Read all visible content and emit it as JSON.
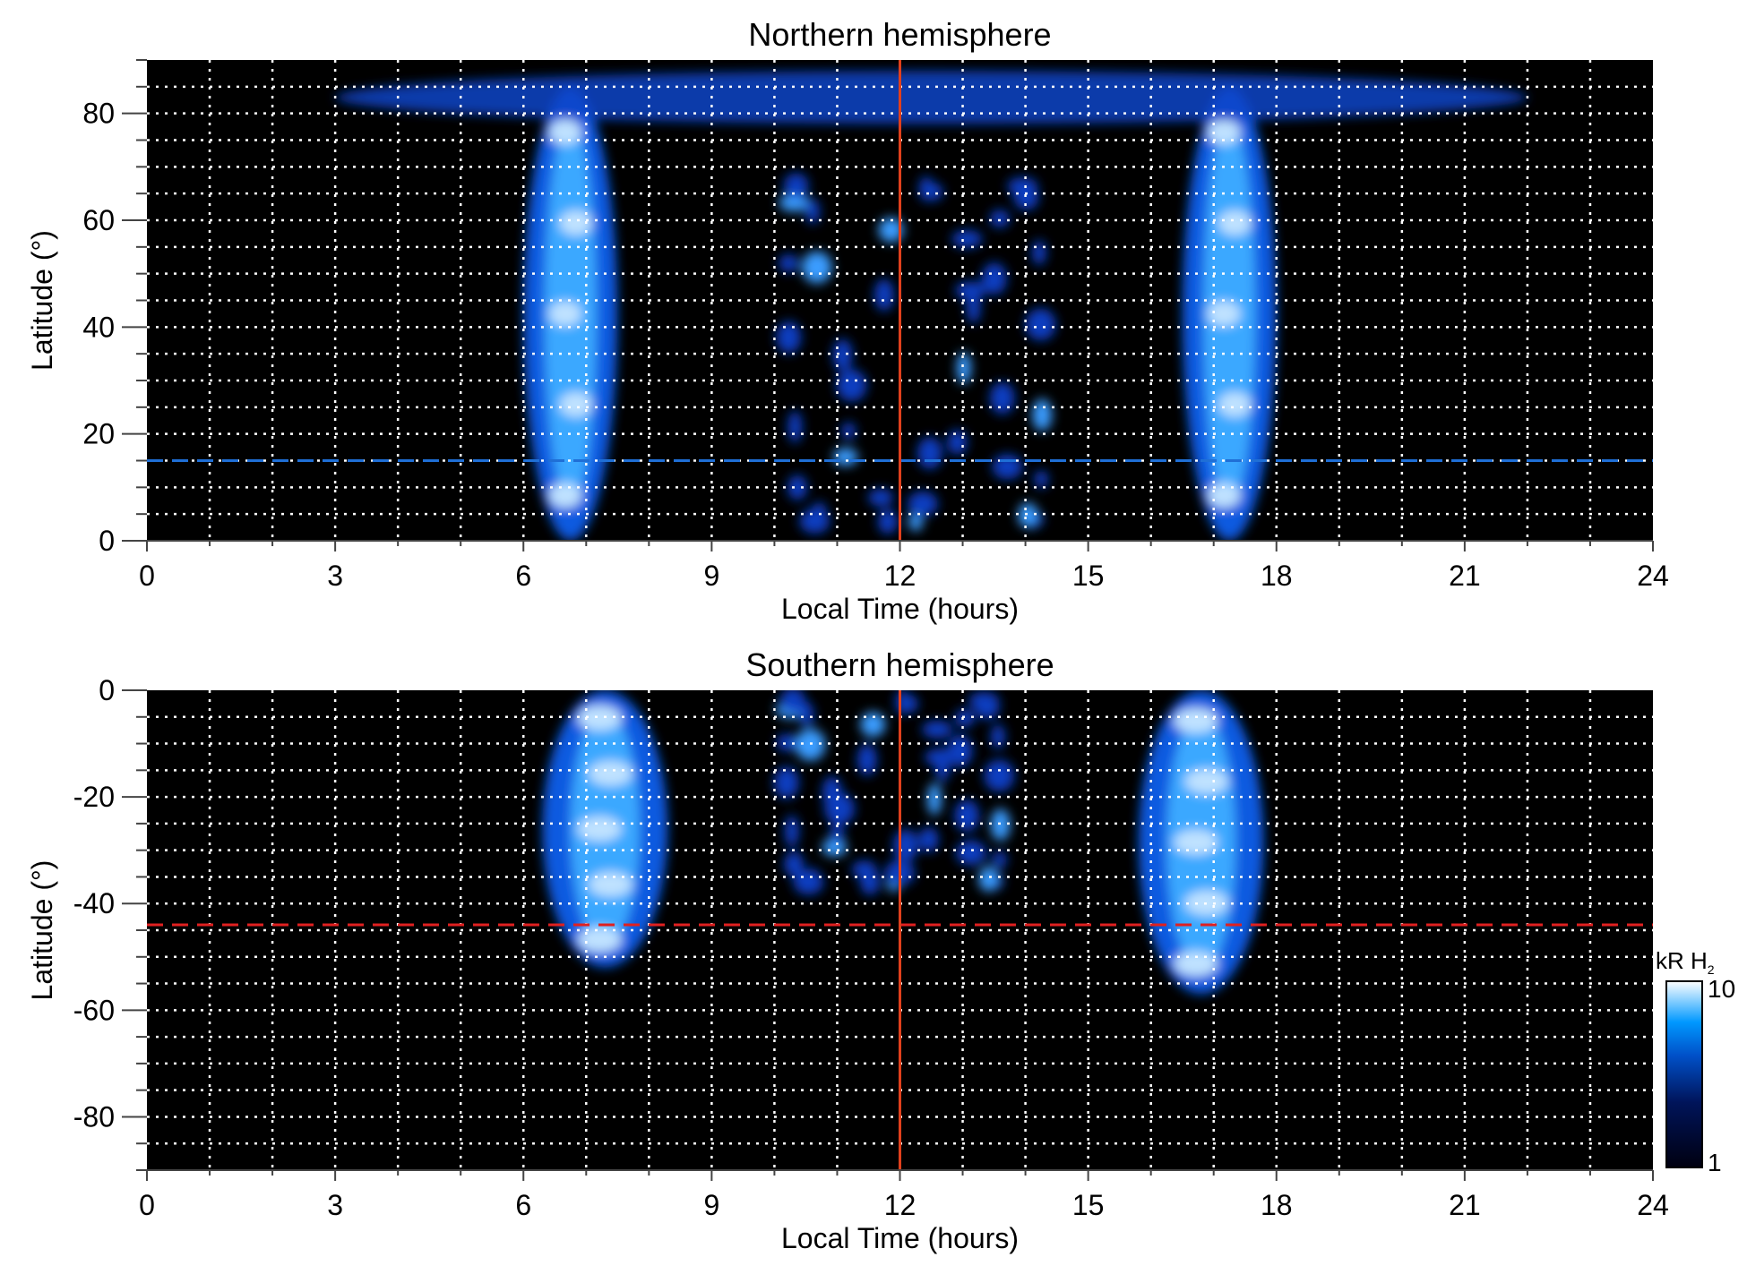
{
  "chart_data": [
    {
      "type": "heatmap",
      "title": "Northern hemisphere",
      "xlabel": "Local Time (hours)",
      "ylabel": "Latitude (°)",
      "xlim": [
        0,
        24
      ],
      "ylim": [
        0,
        90
      ],
      "xticks": [
        0,
        3,
        6,
        9,
        12,
        15,
        18,
        21,
        24
      ],
      "yticks": [
        0,
        20,
        40,
        60,
        80
      ],
      "grid": true,
      "vline": {
        "x": 12,
        "color": "#e0401c"
      },
      "hline": {
        "y": 15,
        "color": "#1f6fd6",
        "style": "dashed"
      },
      "features": [
        {
          "name": "dawn band",
          "x": [
            6,
            7.5
          ],
          "y": [
            0,
            85
          ]
        },
        {
          "name": "dusk band",
          "x": [
            16.5,
            18
          ],
          "y": [
            0,
            85
          ]
        },
        {
          "name": "noon patches",
          "x": [
            10,
            14.5
          ],
          "y": [
            0,
            70
          ]
        },
        {
          "name": "polar arc",
          "x": [
            3,
            22
          ],
          "y": [
            78,
            88
          ]
        }
      ]
    },
    {
      "type": "heatmap",
      "title": "Southern hemisphere",
      "xlabel": "Local Time (hours)",
      "ylabel": "Latitude (°)",
      "xlim": [
        0,
        24
      ],
      "ylim": [
        -90,
        0
      ],
      "xticks": [
        0,
        3,
        6,
        9,
        12,
        15,
        18,
        21,
        24
      ],
      "yticks": [
        0,
        -20,
        -40,
        -60,
        -80
      ],
      "grid": true,
      "vline": {
        "x": 12,
        "color": "#e0401c"
      },
      "hline": {
        "y": -44,
        "color": "#e02020",
        "style": "dashed"
      },
      "features": [
        {
          "name": "dawn band",
          "x": [
            6.3,
            8.3
          ],
          "y": [
            -52,
            0
          ]
        },
        {
          "name": "dusk band",
          "x": [
            15.8,
            17.8
          ],
          "y": [
            -57,
            0
          ]
        },
        {
          "name": "noon patches",
          "x": [
            10,
            13.8
          ],
          "y": [
            -38,
            0
          ]
        }
      ]
    }
  ],
  "colorbar": {
    "label": "kR H",
    "label_sub": "2",
    "min_label": "1",
    "max_label": "10",
    "scale": "log",
    "range": [
      1,
      10
    ]
  }
}
